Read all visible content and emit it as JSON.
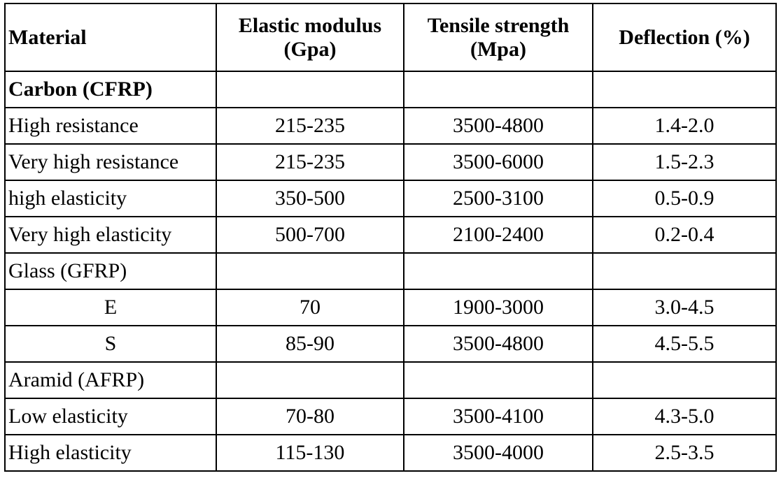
{
  "table": {
    "header": [
      "Material",
      "Elastic modulus (Gpa)",
      "Tensile strength (Mpa)",
      "Deflection (%)"
    ],
    "groups": [
      {
        "name": "Carbon (CFRP)",
        "bold": true,
        "rows": [
          [
            "High resistance",
            "215-235",
            "3500-4800",
            "1.4-2.0"
          ],
          [
            "Very high resistance",
            "215-235",
            "3500-6000",
            "1.5-2.3"
          ],
          [
            "high elasticity",
            "350-500",
            "2500-3100",
            "0.5-0.9"
          ],
          [
            "Very high elasticity",
            "500-700",
            "2100-2400",
            "0.2-0.4"
          ]
        ]
      },
      {
        "name": "Glass (GFRP)",
        "bold": false,
        "rows": [
          [
            "E",
            "70",
            "1900-3000",
            "3.0-4.5"
          ],
          [
            "S",
            "85-90",
            "3500-4800",
            "4.5-5.5"
          ]
        ]
      },
      {
        "name": "Aramid (AFRP)",
        "bold": false,
        "rows": [
          [
            "Low elasticity",
            "70-80",
            "3500-4100",
            "4.3-5.0"
          ],
          [
            "High elasticity",
            "115-130",
            "3500-4000",
            "2.5-3.5"
          ]
        ]
      }
    ]
  }
}
